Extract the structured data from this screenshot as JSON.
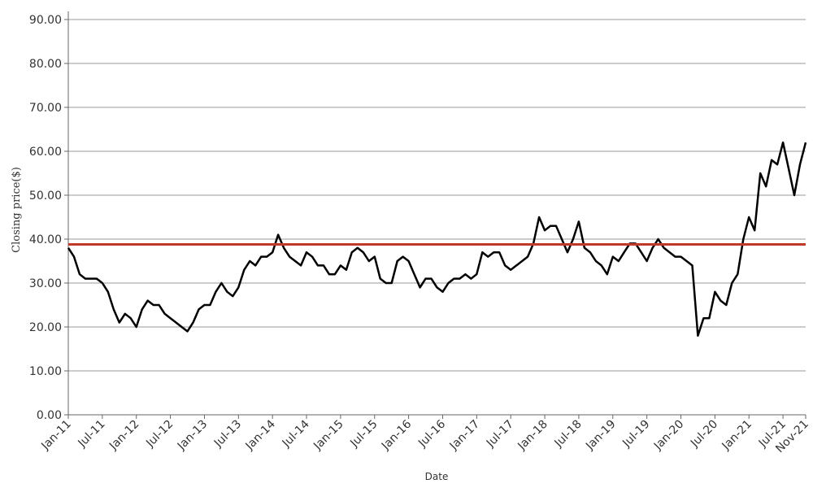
{
  "chart_data": {
    "type": "line",
    "x_label": "Date",
    "y_label": "Closing price($)",
    "x": [
      "2011-01",
      "2011-02",
      "2011-03",
      "2011-04",
      "2011-05",
      "2011-06",
      "2011-07",
      "2011-08",
      "2011-09",
      "2011-10",
      "2011-11",
      "2011-12",
      "2012-01",
      "2012-02",
      "2012-03",
      "2012-04",
      "2012-05",
      "2012-06",
      "2012-07",
      "2012-08",
      "2012-09",
      "2012-10",
      "2012-11",
      "2012-12",
      "2013-01",
      "2013-02",
      "2013-03",
      "2013-04",
      "2013-05",
      "2013-06",
      "2013-07",
      "2013-08",
      "2013-09",
      "2013-10",
      "2013-11",
      "2013-12",
      "2014-01",
      "2014-02",
      "2014-03",
      "2014-04",
      "2014-05",
      "2014-06",
      "2014-07",
      "2014-08",
      "2014-09",
      "2014-10",
      "2014-11",
      "2014-12",
      "2015-01",
      "2015-02",
      "2015-03",
      "2015-04",
      "2015-05",
      "2015-06",
      "2015-07",
      "2015-08",
      "2015-09",
      "2015-10",
      "2015-11",
      "2015-12",
      "2016-01",
      "2016-02",
      "2016-03",
      "2016-04",
      "2016-05",
      "2016-06",
      "2016-07",
      "2016-08",
      "2016-09",
      "2016-10",
      "2016-11",
      "2016-12",
      "2017-01",
      "2017-02",
      "2017-03",
      "2017-04",
      "2017-05",
      "2017-06",
      "2017-07",
      "2017-08",
      "2017-09",
      "2017-10",
      "2017-11",
      "2017-12",
      "2018-01",
      "2018-02",
      "2018-03",
      "2018-04",
      "2018-05",
      "2018-06",
      "2018-07",
      "2018-08",
      "2018-09",
      "2018-10",
      "2018-11",
      "2018-12",
      "2019-01",
      "2019-02",
      "2019-03",
      "2019-04",
      "2019-05",
      "2019-06",
      "2019-07",
      "2019-08",
      "2019-09",
      "2019-10",
      "2019-11",
      "2019-12",
      "2020-01",
      "2020-02",
      "2020-03",
      "2020-04",
      "2020-05",
      "2020-06",
      "2020-07",
      "2020-08",
      "2020-09",
      "2020-10",
      "2020-11",
      "2020-12",
      "2021-01",
      "2021-02",
      "2021-03",
      "2021-04",
      "2021-05",
      "2021-06",
      "2021-07",
      "2021-08",
      "2021-09",
      "2021-10",
      "2021-11"
    ],
    "series": [
      {
        "name": "Closing price",
        "color": "#000000",
        "values": [
          38,
          36,
          32,
          31,
          31,
          31,
          30,
          28,
          24,
          21,
          23,
          22,
          20,
          24,
          26,
          25,
          25,
          23,
          22,
          21,
          20,
          19,
          21,
          24,
          25,
          25,
          28,
          30,
          28,
          27,
          29,
          33,
          35,
          34,
          36,
          36,
          37,
          41,
          38,
          36,
          35,
          34,
          37,
          36,
          34,
          34,
          32,
          32,
          34,
          33,
          37,
          38,
          37,
          35,
          36,
          31,
          30,
          30,
          35,
          36,
          35,
          32,
          29,
          31,
          31,
          29,
          28,
          30,
          31,
          31,
          32,
          31,
          32,
          37,
          36,
          37,
          37,
          34,
          33,
          34,
          35,
          36,
          39,
          45,
          42,
          43,
          43,
          40,
          37,
          40,
          44,
          38,
          37,
          35,
          34,
          32,
          36,
          35,
          37,
          39,
          39,
          37,
          35,
          38,
          40,
          38,
          37,
          36,
          36,
          35,
          34,
          18,
          22,
          22,
          28,
          26,
          25,
          30,
          32,
          40,
          45,
          42,
          55,
          52,
          58,
          57,
          62,
          56,
          50,
          57,
          62
        ]
      }
    ],
    "reference_line": {
      "value": 38.8,
      "color": "#c0392b"
    },
    "xlim": [
      "2011-01",
      "2021-11"
    ],
    "xticks": [
      {
        "value": "2011-01",
        "label": "Jan-11"
      },
      {
        "value": "2011-07",
        "label": "Jul-11"
      },
      {
        "value": "2012-01",
        "label": "Jan-12"
      },
      {
        "value": "2012-07",
        "label": "Jul-12"
      },
      {
        "value": "2013-01",
        "label": "Jan-13"
      },
      {
        "value": "2013-07",
        "label": "Jul-13"
      },
      {
        "value": "2014-01",
        "label": "Jan-14"
      },
      {
        "value": "2014-07",
        "label": "Jul-14"
      },
      {
        "value": "2015-01",
        "label": "Jan-15"
      },
      {
        "value": "2015-07",
        "label": "Jul-15"
      },
      {
        "value": "2016-01",
        "label": "Jan-16"
      },
      {
        "value": "2016-07",
        "label": "Jul-16"
      },
      {
        "value": "2017-01",
        "label": "Jan-17"
      },
      {
        "value": "2017-07",
        "label": "Jul-17"
      },
      {
        "value": "2018-01",
        "label": "Jan-18"
      },
      {
        "value": "2018-07",
        "label": "Jul-18"
      },
      {
        "value": "2019-01",
        "label": "Jan-19"
      },
      {
        "value": "2019-07",
        "label": "Jul-19"
      },
      {
        "value": "2020-01",
        "label": "Jan-20"
      },
      {
        "value": "2020-07",
        "label": "Jul-20"
      },
      {
        "value": "2021-01",
        "label": "Jan-21"
      },
      {
        "value": "2021-07",
        "label": "Jul-21"
      },
      {
        "value": "2021-11",
        "label": "Nov-21"
      }
    ],
    "ylim": [
      0,
      90
    ],
    "yticks": [
      {
        "value": 0,
        "label": "0.00"
      },
      {
        "value": 10,
        "label": "10.00"
      },
      {
        "value": 20,
        "label": "20.00"
      },
      {
        "value": 30,
        "label": "30.00"
      },
      {
        "value": 40,
        "label": "40.00"
      },
      {
        "value": 50,
        "label": "50.00"
      },
      {
        "value": 60,
        "label": "60.00"
      },
      {
        "value": 70,
        "label": "70.00"
      },
      {
        "value": 80,
        "label": "80.00"
      },
      {
        "value": 90,
        "label": "90.00"
      }
    ],
    "grid": true
  }
}
